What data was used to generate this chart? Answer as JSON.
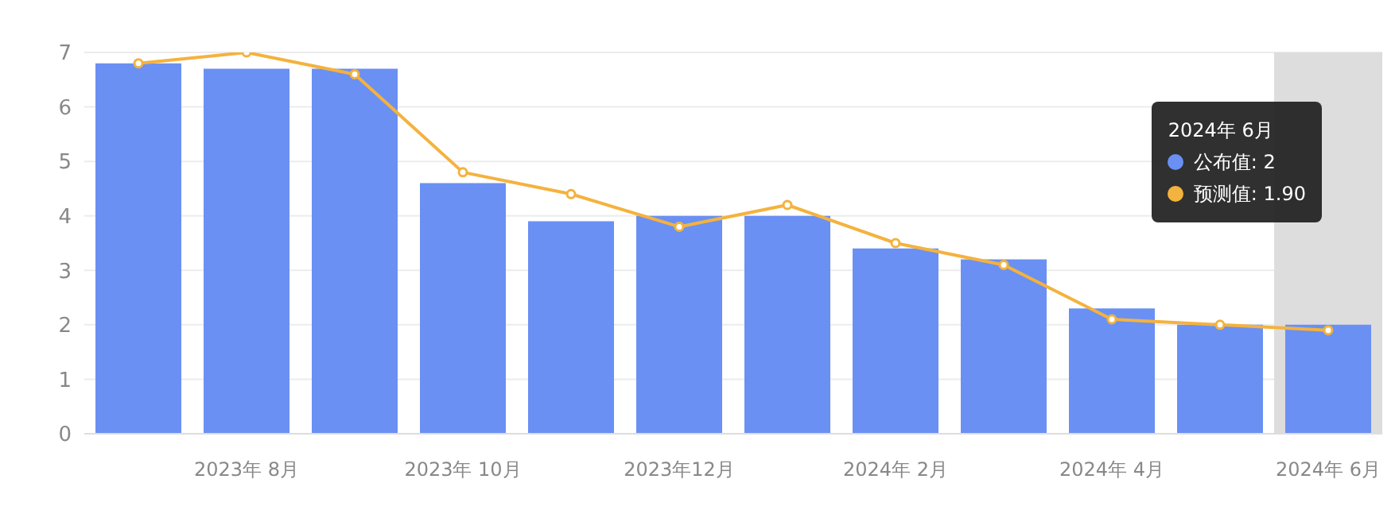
{
  "chart_data": {
    "type": "bar",
    "categories": [
      null,
      "2023年 8月",
      null,
      "2023年 10月",
      null,
      "2023年12月",
      null,
      "2024年 2月",
      null,
      "2024年 4月",
      null,
      "2024年 6月"
    ],
    "series": [
      {
        "name": "公布值:",
        "color": "#6a90f3",
        "values": [
          6.8,
          6.7,
          6.7,
          4.6,
          3.9,
          4.0,
          4.0,
          3.4,
          3.2,
          2.3,
          2.0,
          2
        ]
      },
      {
        "name": "预测值:",
        "type": "line",
        "color": "#f4b23e",
        "values": [
          6.8,
          7.0,
          6.6,
          4.8,
          4.4,
          3.8,
          4.2,
          3.5,
          3.1,
          2.1,
          2.0,
          1.9
        ]
      }
    ],
    "annotations": [
      "2024年 6月",
      "2",
      "1.90"
    ],
    "bands": [
      {
        "axis": "x",
        "from": "2024年 6月",
        "to": "2024年 6月",
        "color": "#dddddd"
      }
    ],
    "ylim": [
      0,
      7
    ],
    "yticks": [
      0,
      1,
      2,
      3,
      4,
      5,
      6,
      7
    ],
    "grid": "y",
    "legend": "top right",
    "marker": "circle"
  }
}
